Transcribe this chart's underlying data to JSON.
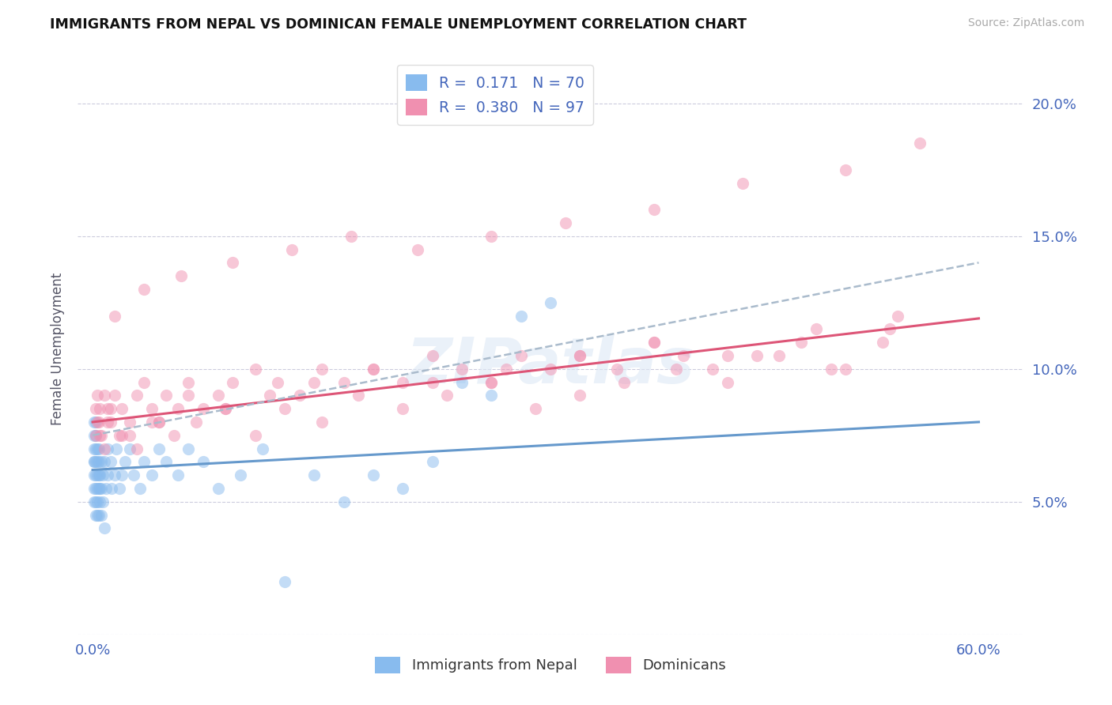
{
  "title": "IMMIGRANTS FROM NEPAL VS DOMINICAN FEMALE UNEMPLOYMENT CORRELATION CHART",
  "source": "Source: ZipAtlas.com",
  "ylabel": "Female Unemployment",
  "x_ticks": [
    0.0,
    0.1,
    0.2,
    0.3,
    0.4,
    0.5,
    0.6
  ],
  "x_tick_labels": [
    "0.0%",
    "",
    "",
    "",
    "",
    "",
    "60.0%"
  ],
  "y_ticks": [
    0.0,
    0.05,
    0.1,
    0.15,
    0.2
  ],
  "y_tick_labels_right": [
    "",
    "5.0%",
    "10.0%",
    "15.0%",
    "20.0%"
  ],
  "xlim": [
    -0.01,
    0.63
  ],
  "ylim": [
    0.0,
    0.215
  ],
  "nepal_color": "#88bbee",
  "dominican_color": "#f090b0",
  "nepal_line_color": "#6699cc",
  "dominican_line_color": "#dd5577",
  "grid_color": "#ccccdd",
  "background_color": "#ffffff",
  "title_color": "#111111",
  "axis_color": "#4466bb",
  "legend_label1": "R =  0.171   N = 70",
  "legend_label2": "R =  0.380   N = 97",
  "nepal_slope": 0.03,
  "nepal_intercept": 0.062,
  "dominican_slope": 0.065,
  "dominican_intercept": 0.08,
  "nepal_scatter_x": [
    0.001,
    0.001,
    0.001,
    0.001,
    0.001,
    0.001,
    0.001,
    0.001,
    0.002,
    0.002,
    0.002,
    0.002,
    0.002,
    0.002,
    0.002,
    0.002,
    0.003,
    0.003,
    0.003,
    0.003,
    0.003,
    0.003,
    0.004,
    0.004,
    0.004,
    0.004,
    0.004,
    0.005,
    0.005,
    0.005,
    0.006,
    0.006,
    0.006,
    0.007,
    0.007,
    0.008,
    0.008,
    0.009,
    0.01,
    0.01,
    0.012,
    0.013,
    0.015,
    0.016,
    0.018,
    0.02,
    0.022,
    0.025,
    0.028,
    0.032,
    0.035,
    0.04,
    0.045,
    0.05,
    0.058,
    0.065,
    0.075,
    0.085,
    0.1,
    0.115,
    0.13,
    0.15,
    0.17,
    0.19,
    0.21,
    0.23,
    0.25,
    0.27,
    0.29,
    0.31
  ],
  "nepal_scatter_y": [
    0.065,
    0.07,
    0.075,
    0.08,
    0.065,
    0.055,
    0.06,
    0.05,
    0.06,
    0.065,
    0.07,
    0.055,
    0.05,
    0.045,
    0.075,
    0.08,
    0.055,
    0.06,
    0.065,
    0.045,
    0.05,
    0.07,
    0.045,
    0.055,
    0.06,
    0.065,
    0.07,
    0.05,
    0.055,
    0.06,
    0.045,
    0.055,
    0.065,
    0.05,
    0.06,
    0.04,
    0.065,
    0.055,
    0.06,
    0.07,
    0.065,
    0.055,
    0.06,
    0.07,
    0.055,
    0.06,
    0.065,
    0.07,
    0.06,
    0.055,
    0.065,
    0.06,
    0.07,
    0.065,
    0.06,
    0.07,
    0.065,
    0.055,
    0.06,
    0.07,
    0.02,
    0.06,
    0.05,
    0.06,
    0.055,
    0.065,
    0.095,
    0.09,
    0.12,
    0.125
  ],
  "dominican_scatter_x": [
    0.002,
    0.003,
    0.004,
    0.005,
    0.006,
    0.008,
    0.01,
    0.012,
    0.015,
    0.018,
    0.02,
    0.025,
    0.03,
    0.035,
    0.04,
    0.045,
    0.05,
    0.058,
    0.065,
    0.075,
    0.085,
    0.095,
    0.11,
    0.125,
    0.14,
    0.155,
    0.17,
    0.19,
    0.21,
    0.23,
    0.25,
    0.27,
    0.29,
    0.31,
    0.33,
    0.355,
    0.38,
    0.4,
    0.42,
    0.45,
    0.48,
    0.51,
    0.54,
    0.002,
    0.003,
    0.005,
    0.008,
    0.012,
    0.02,
    0.03,
    0.04,
    0.055,
    0.07,
    0.09,
    0.11,
    0.13,
    0.155,
    0.18,
    0.21,
    0.24,
    0.27,
    0.3,
    0.33,
    0.36,
    0.395,
    0.43,
    0.465,
    0.5,
    0.535,
    0.01,
    0.025,
    0.045,
    0.065,
    0.09,
    0.12,
    0.15,
    0.19,
    0.23,
    0.28,
    0.33,
    0.38,
    0.43,
    0.49,
    0.545,
    0.015,
    0.035,
    0.06,
    0.095,
    0.135,
    0.175,
    0.22,
    0.27,
    0.32,
    0.38,
    0.44,
    0.51,
    0.56
  ],
  "dominican_scatter_y": [
    0.085,
    0.09,
    0.08,
    0.085,
    0.075,
    0.09,
    0.08,
    0.085,
    0.09,
    0.075,
    0.085,
    0.08,
    0.09,
    0.095,
    0.085,
    0.08,
    0.09,
    0.085,
    0.095,
    0.085,
    0.09,
    0.095,
    0.1,
    0.095,
    0.09,
    0.1,
    0.095,
    0.1,
    0.095,
    0.105,
    0.1,
    0.095,
    0.105,
    0.1,
    0.105,
    0.1,
    0.11,
    0.105,
    0.1,
    0.105,
    0.11,
    0.1,
    0.115,
    0.075,
    0.08,
    0.075,
    0.07,
    0.08,
    0.075,
    0.07,
    0.08,
    0.075,
    0.08,
    0.085,
    0.075,
    0.085,
    0.08,
    0.09,
    0.085,
    0.09,
    0.095,
    0.085,
    0.09,
    0.095,
    0.1,
    0.095,
    0.105,
    0.1,
    0.11,
    0.085,
    0.075,
    0.08,
    0.09,
    0.085,
    0.09,
    0.095,
    0.1,
    0.095,
    0.1,
    0.105,
    0.11,
    0.105,
    0.115,
    0.12,
    0.12,
    0.13,
    0.135,
    0.14,
    0.145,
    0.15,
    0.145,
    0.15,
    0.155,
    0.16,
    0.17,
    0.175,
    0.185
  ]
}
